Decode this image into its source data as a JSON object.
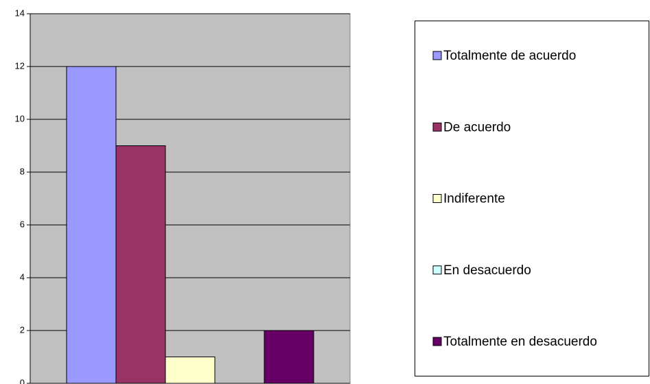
{
  "chart_data": {
    "type": "bar",
    "categories": [
      null
    ],
    "series": [
      {
        "name": "Totalmente de acuerdo",
        "color": "#9999ff",
        "values": [
          12
        ]
      },
      {
        "name": "De acuerdo",
        "color": "#993366",
        "values": [
          9
        ]
      },
      {
        "name": "Indiferente",
        "color": "#ffffcc",
        "values": [
          1
        ]
      },
      {
        "name": "En desacuerdo",
        "color": "#ccffff",
        "values": [
          0
        ]
      },
      {
        "name": "Totalmente en desacuerdo",
        "color": "#660066",
        "values": [
          2
        ]
      }
    ],
    "ylim": [
      0,
      14
    ],
    "yticks": [
      0,
      2,
      4,
      6,
      8,
      10,
      12,
      14
    ],
    "grid": true,
    "legend": "right",
    "plot_background": "#c0c0c0"
  }
}
